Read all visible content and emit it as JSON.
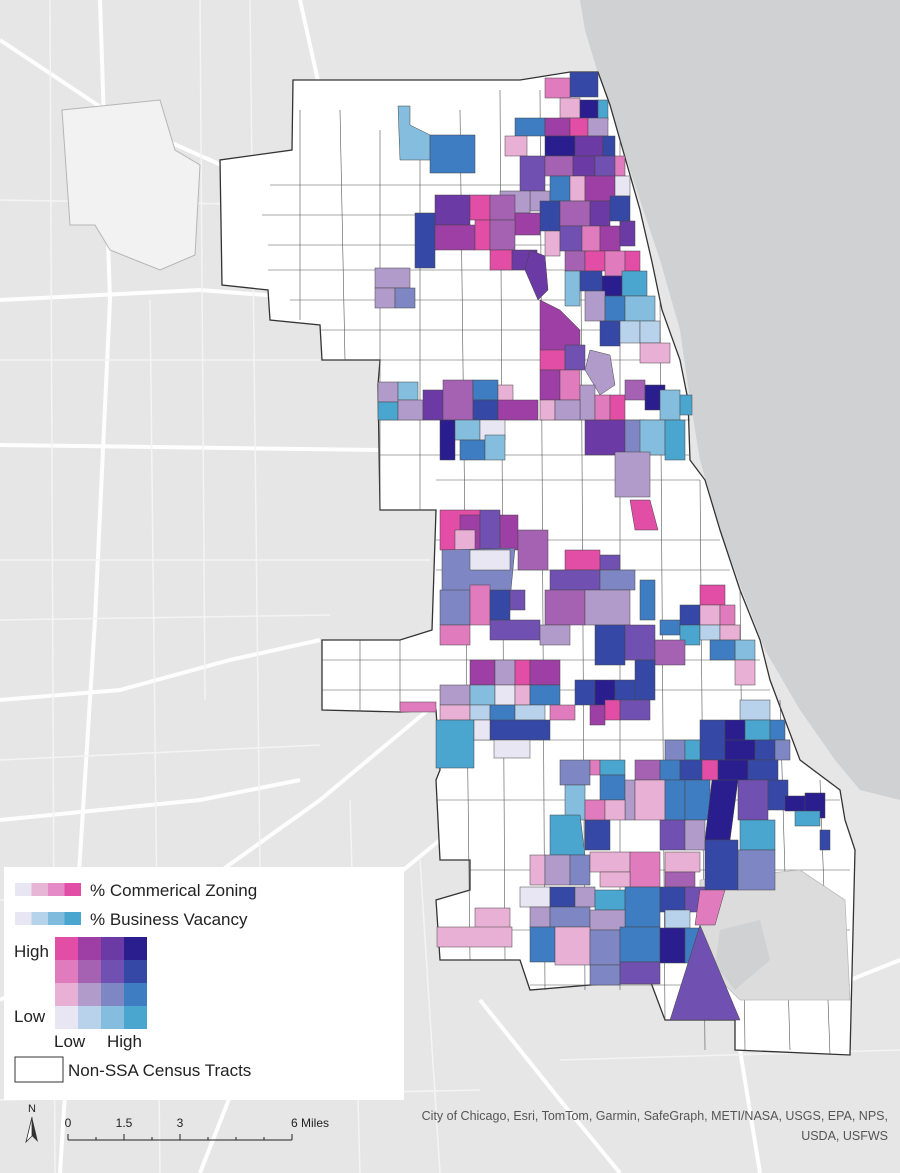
{
  "legend": {
    "commercial_label": "% Commerical Zoning",
    "vacancy_label": "% Business Vacancy",
    "high_label": "High",
    "low_label": "Low",
    "x_low_label": "Low",
    "x_high_label": "High",
    "nonssa_label": "Non-SSA Census Tracts",
    "commercial_ramp": [
      "#e8e6f2",
      "#e7b5d6",
      "#e58ac6",
      "#e24da6"
    ],
    "vacancy_ramp": [
      "#e8e6f2",
      "#b5d3ea",
      "#7fbbdd",
      "#4aa6cf"
    ],
    "bivariate_grid": [
      [
        "#e24da6",
        "#9e3fa6",
        "#6b3aa4",
        "#2a1e8e"
      ],
      [
        "#e07cbd",
        "#a562b3",
        "#7050b0",
        "#3648a6"
      ],
      [
        "#e8b0d5",
        "#b09bcb",
        "#7e86c3",
        "#3f7dc2"
      ],
      [
        "#e8e6f2",
        "#b7d2ea",
        "#84bddd",
        "#4aa6cf"
      ]
    ]
  },
  "scale_bar": {
    "ticks": [
      "0",
      "1.5",
      "3",
      "6 Miles"
    ],
    "north_label": "N"
  },
  "attribution": "City of Chicago, Esri, TomTom, Garmin, SafeGraph, METI/NASA, USGS, EPA, NPS, USDA, USFWS",
  "colors": {
    "background": "#e6e6e6",
    "water": "#cfd1d3",
    "tract_fill": "#ffffff",
    "tract_stroke": "#333333"
  }
}
